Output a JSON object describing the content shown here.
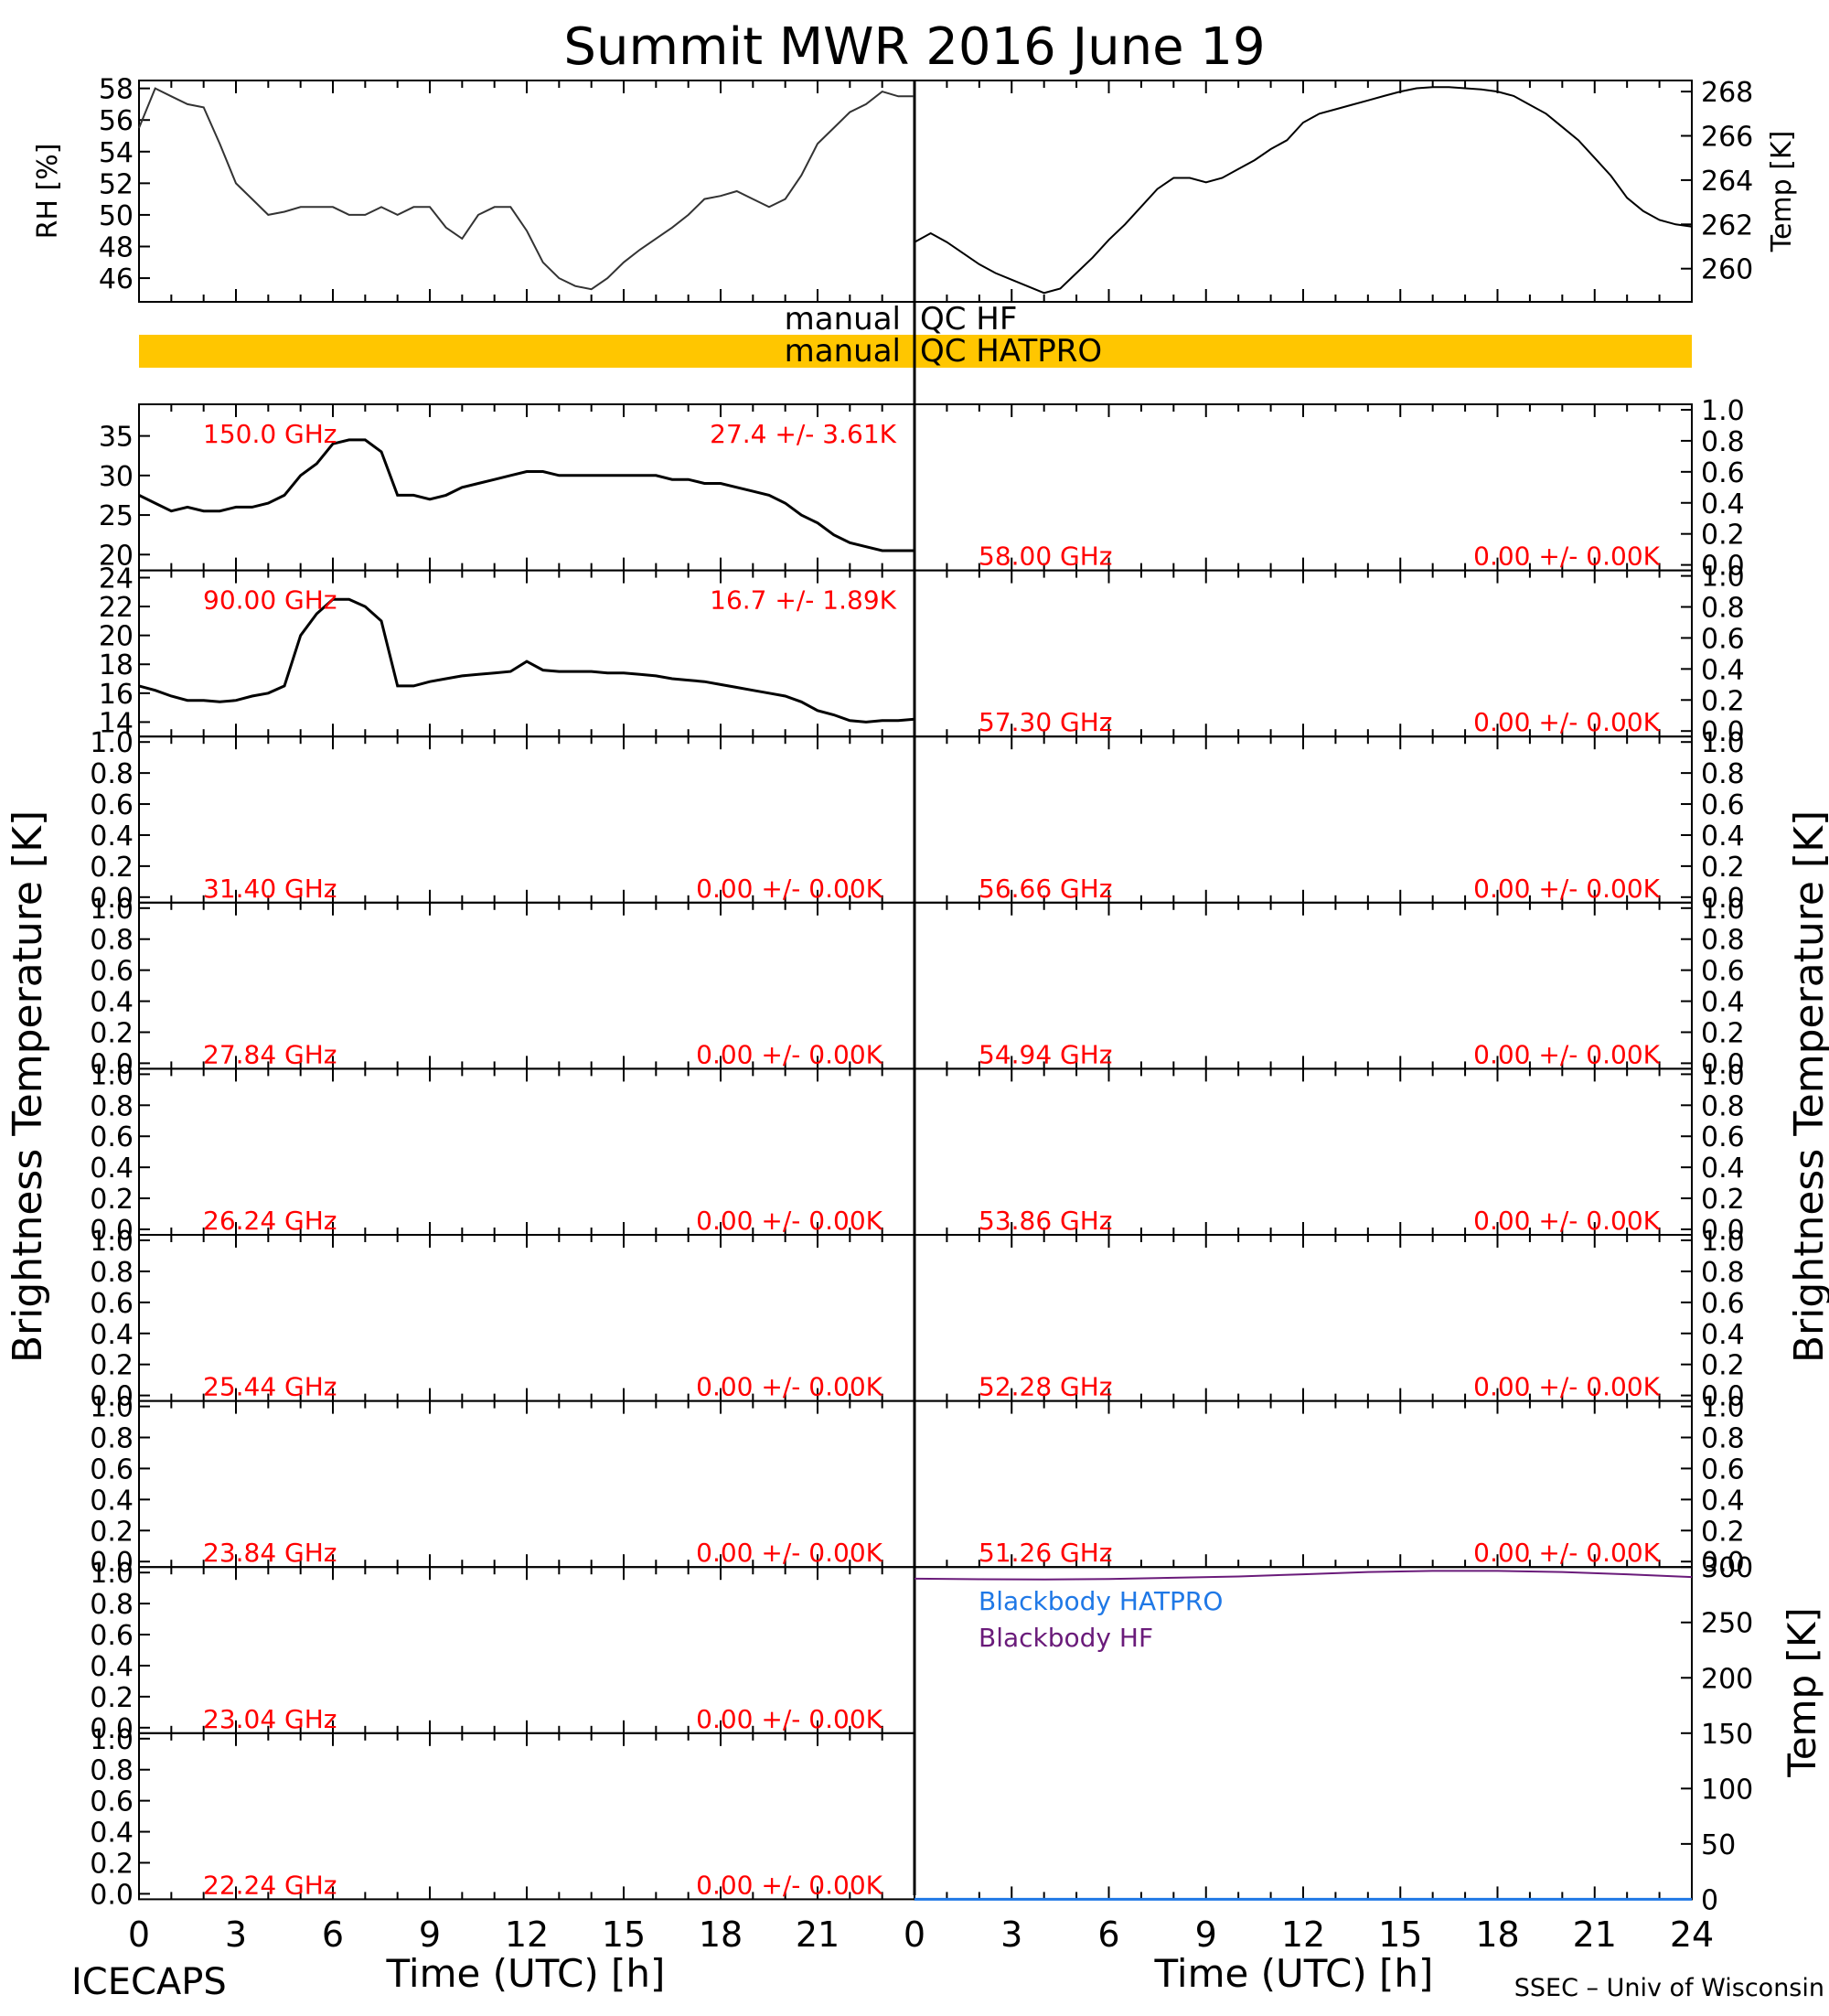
{
  "title": "Summit MWR 2016 June 19",
  "footer": {
    "left": "ICECAPS",
    "right": "SSEC – Univ of Wisconsin",
    "xlabel_left": "Time (UTC) [h]",
    "xlabel_right": "Time (UTC) [h]"
  },
  "side_labels": {
    "left": "Brightness Temperature [K]",
    "right": "Brightness Temperature [K]"
  },
  "qc": {
    "hf_left": "manual",
    "hf_right": "QC HF",
    "hatpro_left": "manual",
    "hatpro_right": "QC HATPRO",
    "bar_color": "#FFC600"
  },
  "colors": {
    "label_red": "#ff0000",
    "hatpro_blue": "#1f78e6",
    "hf_purple": "#6a1b7a"
  },
  "chart_data": [
    {
      "id": "rh",
      "type": "line",
      "ylabel": "RH [%]",
      "xlim": [
        0,
        24
      ],
      "ylim": [
        44.5,
        58.5
      ],
      "yticks": [
        "46",
        "48",
        "50",
        "52",
        "54",
        "56",
        "58"
      ],
      "x": [
        0,
        0.5,
        1,
        1.5,
        2,
        2.5,
        3,
        3.5,
        4,
        4.5,
        5,
        5.5,
        6,
        6.5,
        7,
        7.5,
        8,
        8.5,
        9,
        9.5,
        10,
        10.5,
        11,
        11.5,
        12,
        12.5,
        13,
        13.5,
        14,
        14.5,
        15,
        15.5,
        16,
        16.5,
        17,
        17.5,
        18,
        18.5,
        19,
        19.5,
        20,
        20.5,
        21,
        21.5,
        22,
        22.5,
        23,
        23.5,
        24
      ],
      "values": [
        55.5,
        58,
        57.5,
        57,
        56.8,
        54.5,
        52,
        51,
        50,
        50.2,
        50.5,
        50.5,
        50.5,
        50,
        50,
        50.5,
        50,
        50.5,
        50.5,
        49.2,
        48.5,
        50,
        50.5,
        50.5,
        49,
        47,
        46,
        45.5,
        45.3,
        46,
        47,
        47.8,
        48.5,
        49.2,
        50,
        51,
        51.2,
        51.5,
        51,
        50.5,
        51,
        52.5,
        54.5,
        55.5,
        56.5,
        57,
        57.8,
        57.5,
        57.5
      ]
    },
    {
      "id": "temp_top",
      "type": "line",
      "ylabel": "Temp [K]",
      "xlim": [
        0,
        24
      ],
      "ylim": [
        258.5,
        268.5
      ],
      "yticks": [
        "260",
        "262",
        "264",
        "266",
        "268"
      ],
      "x": [
        0,
        0.5,
        1,
        1.5,
        2,
        2.5,
        3,
        3.5,
        4,
        4.5,
        5,
        5.5,
        6,
        6.5,
        7,
        7.5,
        8,
        8.5,
        9,
        9.5,
        10,
        10.5,
        11,
        11.5,
        12,
        12.5,
        13,
        13.5,
        14,
        14.5,
        15,
        15.5,
        16,
        16.5,
        17,
        17.5,
        18,
        18.5,
        19,
        19.5,
        20,
        20.5,
        21,
        21.5,
        22,
        22.5,
        23,
        23.5,
        24
      ],
      "values": [
        261.2,
        261.6,
        261.2,
        260.7,
        260.2,
        259.8,
        259.5,
        259.2,
        258.9,
        259.1,
        259.8,
        260.5,
        261.3,
        262,
        262.8,
        263.6,
        264.1,
        264.1,
        263.9,
        264.1,
        264.5,
        264.9,
        265.4,
        265.8,
        266.6,
        267.0,
        267.2,
        267.4,
        267.6,
        267.8,
        268.0,
        268.15,
        268.2,
        268.2,
        268.15,
        268.1,
        268.0,
        267.8,
        267.4,
        267.0,
        266.4,
        265.8,
        265.0,
        264.2,
        263.2,
        262.6,
        262.2,
        262.0,
        261.9
      ]
    },
    {
      "id": "ch_150",
      "type": "line",
      "freq_label": "150.0 GHz",
      "stat_label": "27.4 +/-  3.61K",
      "ylim": [
        18,
        39
      ],
      "yticks": [
        "20",
        "25",
        "30",
        "35"
      ],
      "x": [
        0,
        0.5,
        1,
        1.5,
        2,
        2.5,
        3,
        3.5,
        4,
        4.5,
        5,
        5.5,
        6,
        6.5,
        7,
        7.5,
        8,
        8.5,
        9,
        9.5,
        10,
        10.5,
        11,
        11.5,
        12,
        12.5,
        13,
        13.5,
        14,
        14.5,
        15,
        15.5,
        16,
        16.5,
        17,
        17.5,
        18,
        18.5,
        19,
        19.5,
        20,
        20.5,
        21,
        21.5,
        22,
        22.5,
        23,
        23.5,
        24
      ],
      "values": [
        27.5,
        26.5,
        25.5,
        26,
        25.5,
        25.5,
        26,
        26,
        26.5,
        27.5,
        30,
        31.5,
        34,
        34.5,
        34.5,
        33,
        27.5,
        27.5,
        27,
        27.5,
        28.5,
        29,
        29.5,
        30,
        30.5,
        30.5,
        30,
        30,
        30,
        30,
        30,
        30,
        30,
        29.5,
        29.5,
        29,
        29,
        28.5,
        28,
        27.5,
        26.5,
        25,
        24,
        22.5,
        21.5,
        21,
        20.5,
        20.5,
        20.5
      ]
    },
    {
      "id": "ch_90",
      "type": "line",
      "freq_label": "90.00 GHz",
      "stat_label": "16.7 +/-  1.89K",
      "ylim": [
        13,
        24.5
      ],
      "yticks": [
        "14",
        "16",
        "18",
        "20",
        "22",
        "24"
      ],
      "x": [
        0,
        0.5,
        1,
        1.5,
        2,
        2.5,
        3,
        3.5,
        4,
        4.5,
        5,
        5.5,
        6,
        6.5,
        7,
        7.5,
        8,
        8.5,
        9,
        9.5,
        10,
        10.5,
        11,
        11.5,
        12,
        12.5,
        13,
        13.5,
        14,
        14.5,
        15,
        15.5,
        16,
        16.5,
        17,
        17.5,
        18,
        18.5,
        19,
        19.5,
        20,
        20.5,
        21,
        21.5,
        22,
        22.5,
        23,
        23.5,
        24
      ],
      "values": [
        16.5,
        16.2,
        15.8,
        15.5,
        15.5,
        15.4,
        15.5,
        15.8,
        16,
        16.5,
        20,
        21.5,
        22.5,
        22.5,
        22,
        21,
        16.5,
        16.5,
        16.8,
        17,
        17.2,
        17.3,
        17.4,
        17.5,
        18.2,
        17.6,
        17.5,
        17.5,
        17.5,
        17.4,
        17.4,
        17.3,
        17.2,
        17.0,
        16.9,
        16.8,
        16.6,
        16.4,
        16.2,
        16,
        15.8,
        15.4,
        14.8,
        14.5,
        14.1,
        14.0,
        14.1,
        14.1,
        14.2
      ]
    },
    {
      "id": "ch_58",
      "type": "line",
      "freq_label": "58.00 GHz",
      "stat_label": "0.00 +/-  0.00K",
      "ylim": [
        0,
        1
      ],
      "yticks": [
        "0.0",
        "0.2",
        "0.4",
        "0.6",
        "0.8",
        "1.0"
      ],
      "values": []
    },
    {
      "id": "ch_57",
      "type": "line",
      "freq_label": "57.30 GHz",
      "stat_label": "0.00 +/-  0.00K",
      "ylim": [
        0,
        1
      ],
      "yticks": [
        "0.0",
        "0.2",
        "0.4",
        "0.6",
        "0.8",
        "1.0"
      ],
      "values": []
    },
    {
      "id": "ch_31",
      "type": "line",
      "freq_label": "31.40 GHz",
      "stat_label": "0.00 +/-  0.00K",
      "ylim": [
        0,
        1
      ],
      "yticks": [
        "0.0",
        "0.2",
        "0.4",
        "0.6",
        "0.8",
        "1.0"
      ],
      "values": []
    },
    {
      "id": "ch_56",
      "type": "line",
      "freq_label": "56.66 GHz",
      "stat_label": "0.00 +/-  0.00K",
      "ylim": [
        0,
        1
      ],
      "yticks": [
        "0.0",
        "0.2",
        "0.4",
        "0.6",
        "0.8",
        "1.0"
      ],
      "values": []
    },
    {
      "id": "ch_27",
      "type": "line",
      "freq_label": "27.84 GHz",
      "stat_label": "0.00 +/-  0.00K",
      "ylim": [
        0,
        1
      ],
      "yticks": [
        "0.0",
        "0.2",
        "0.4",
        "0.6",
        "0.8",
        "1.0"
      ],
      "values": []
    },
    {
      "id": "ch_54",
      "type": "line",
      "freq_label": "54.94 GHz",
      "stat_label": "0.00 +/-  0.00K",
      "ylim": [
        0,
        1
      ],
      "yticks": [
        "0.0",
        "0.2",
        "0.4",
        "0.6",
        "0.8",
        "1.0"
      ],
      "values": []
    },
    {
      "id": "ch_26",
      "type": "line",
      "freq_label": "26.24 GHz",
      "stat_label": "0.00 +/-  0.00K",
      "ylim": [
        0,
        1
      ],
      "yticks": [
        "0.0",
        "0.2",
        "0.4",
        "0.6",
        "0.8",
        "1.0"
      ],
      "values": []
    },
    {
      "id": "ch_53",
      "type": "line",
      "freq_label": "53.86 GHz",
      "stat_label": "0.00 +/-  0.00K",
      "ylim": [
        0,
        1
      ],
      "yticks": [
        "0.0",
        "0.2",
        "0.4",
        "0.6",
        "0.8",
        "1.0"
      ],
      "values": []
    },
    {
      "id": "ch_25",
      "type": "line",
      "freq_label": "25.44 GHz",
      "stat_label": "0.00 +/-  0.00K",
      "ylim": [
        0,
        1
      ],
      "yticks": [
        "0.0",
        "0.2",
        "0.4",
        "0.6",
        "0.8",
        "1.0"
      ],
      "values": []
    },
    {
      "id": "ch_52",
      "type": "line",
      "freq_label": "52.28 GHz",
      "stat_label": "0.00 +/-  0.00K",
      "ylim": [
        0,
        1
      ],
      "yticks": [
        "0.0",
        "0.2",
        "0.4",
        "0.6",
        "0.8",
        "1.0"
      ],
      "values": []
    },
    {
      "id": "ch_23_84",
      "type": "line",
      "freq_label": "23.84 GHz",
      "stat_label": "0.00 +/-  0.00K",
      "ylim": [
        0,
        1
      ],
      "yticks": [
        "0.0",
        "0.2",
        "0.4",
        "0.6",
        "0.8",
        "1.0"
      ],
      "values": []
    },
    {
      "id": "ch_51",
      "type": "line",
      "freq_label": "51.26 GHz",
      "stat_label": "0.00 +/-  0.00K",
      "ylim": [
        0,
        1
      ],
      "yticks": [
        "0.0",
        "0.2",
        "0.4",
        "0.6",
        "0.8",
        "1.0"
      ],
      "values": []
    },
    {
      "id": "ch_23_04",
      "type": "line",
      "freq_label": "23.04 GHz",
      "stat_label": "0.00 +/-  0.00K",
      "ylim": [
        0,
        1
      ],
      "yticks": [
        "0.0",
        "0.2",
        "0.4",
        "0.6",
        "0.8",
        "1.0"
      ],
      "values": []
    },
    {
      "id": "ch_22",
      "type": "line",
      "freq_label": "22.24 GHz",
      "stat_label": "0.00 +/-  0.00K",
      "ylim": [
        0,
        1
      ],
      "yticks": [
        "0.0",
        "0.2",
        "0.4",
        "0.6",
        "0.8",
        "1.0"
      ],
      "values": []
    },
    {
      "id": "blackbody",
      "type": "line",
      "ylabel": "Temp [K]",
      "xlim": [
        0,
        24
      ],
      "ylim": [
        0,
        300
      ],
      "yticks": [
        "0",
        "50",
        "100",
        "150",
        "200",
        "250",
        "300"
      ],
      "xticks": [
        "0",
        "3",
        "6",
        "9",
        "12",
        "15",
        "18",
        "21",
        "24"
      ],
      "series": [
        {
          "name": "Blackbody HATPRO",
          "x": [
            0,
            24
          ],
          "values": [
            0,
            0
          ]
        },
        {
          "name": "Blackbody HF",
          "x": [
            0,
            2,
            4,
            6,
            8,
            10,
            12,
            14,
            16,
            18,
            20,
            22,
            24
          ],
          "values": [
            289.5,
            289.0,
            288.8,
            289.3,
            290.3,
            291.5,
            293.5,
            295.5,
            296.5,
            296.5,
            295.5,
            293.5,
            291.0
          ]
        }
      ]
    }
  ],
  "xticks_left": [
    "0",
    "3",
    "6",
    "9",
    "12",
    "15",
    "18",
    "21"
  ],
  "xticks_right": [
    "0",
    "3",
    "6",
    "9",
    "12",
    "15",
    "18",
    "21",
    "24"
  ]
}
